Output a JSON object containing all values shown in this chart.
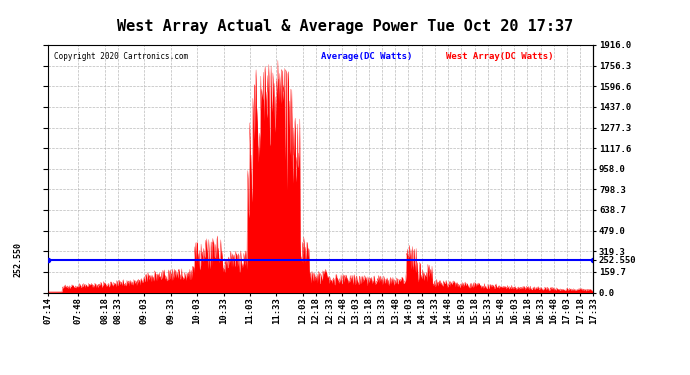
{
  "title": "West Array Actual & Average Power Tue Oct 20 17:37",
  "copyright": "Copyright 2020 Cartronics.com",
  "avg_label": "Average(DC Watts)",
  "west_label": "West Array(DC Watts)",
  "avg_color": "blue",
  "west_color": "red",
  "avg_value": 252.55,
  "ymin": 0.0,
  "ymax": 1916.0,
  "yticks": [
    0.0,
    159.7,
    319.3,
    479.0,
    638.7,
    798.3,
    958.0,
    1117.6,
    1277.3,
    1437.0,
    1596.6,
    1756.3,
    1916.0
  ],
  "background_color": "#ffffff",
  "grid_color": "#bbbbbb",
  "title_fontsize": 11,
  "tick_fontsize": 6.5,
  "xtick_labels": [
    "07:14",
    "07:48",
    "08:18",
    "08:33",
    "09:03",
    "09:33",
    "10:03",
    "10:33",
    "11:03",
    "11:33",
    "12:03",
    "12:18",
    "12:33",
    "12:48",
    "13:03",
    "13:18",
    "13:33",
    "13:48",
    "14:03",
    "14:18",
    "14:33",
    "14:48",
    "15:03",
    "15:18",
    "15:33",
    "15:48",
    "16:03",
    "16:18",
    "16:33",
    "16:48",
    "17:03",
    "17:18",
    "17:33"
  ]
}
